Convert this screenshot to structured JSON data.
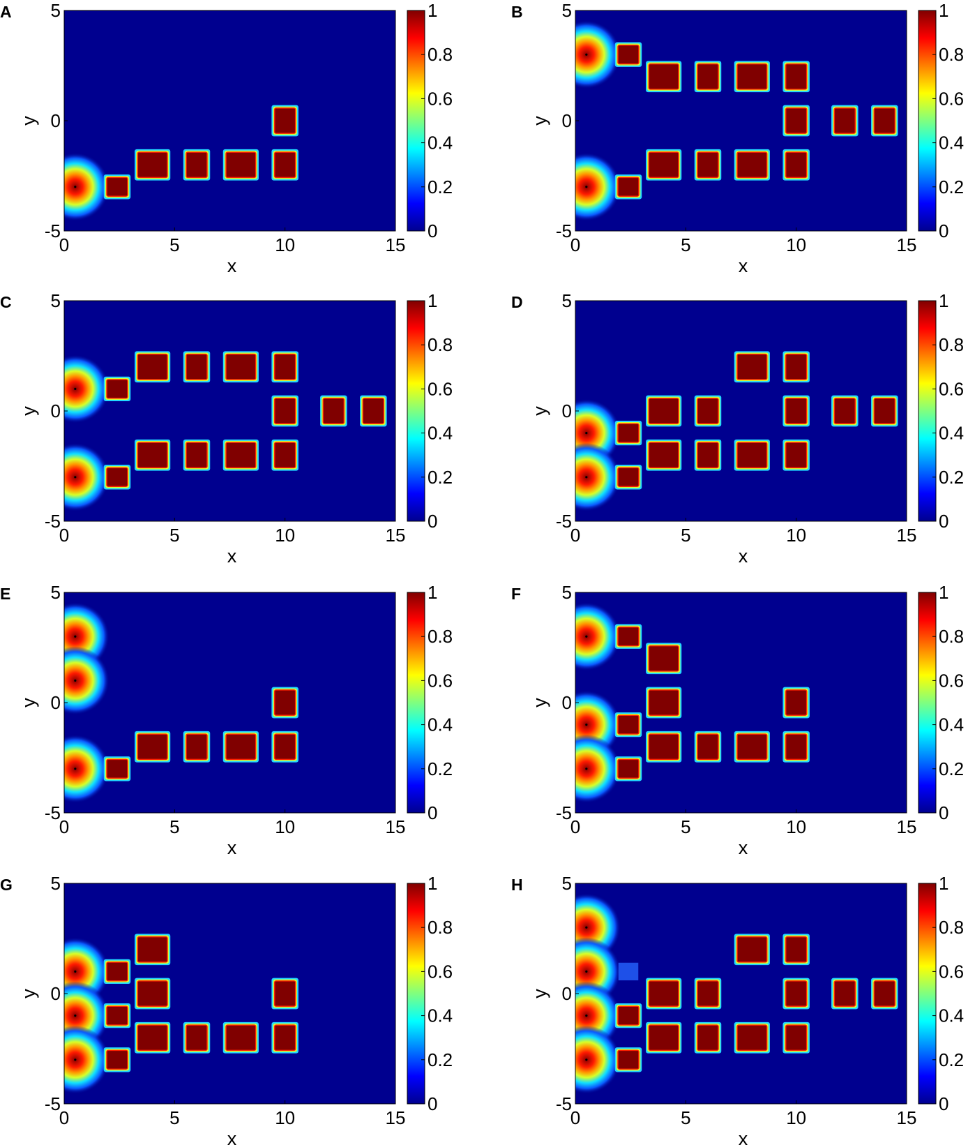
{
  "figure": {
    "colormap": "jet",
    "colors": {
      "background": "#ffffff",
      "field_low": "#00008f",
      "field_high": "#800000"
    },
    "panels": [
      {
        "label": "A"
      },
      {
        "label": "B"
      },
      {
        "label": "C"
      },
      {
        "label": "D"
      },
      {
        "label": "E"
      },
      {
        "label": "F"
      },
      {
        "label": "G"
      },
      {
        "label": "H"
      }
    ]
  },
  "chart_data": [
    {
      "panel": "A",
      "type": "heatmap",
      "colormap": "jet",
      "xlabel": "x",
      "ylabel": "y",
      "xlim": [
        0,
        15
      ],
      "ylim": [
        -5,
        5
      ],
      "xticks": [
        "0",
        "5",
        "10",
        "15"
      ],
      "yticks": [
        "-5",
        "0",
        "5"
      ],
      "clim": [
        0,
        1
      ],
      "colorbar_ticks": [
        "0",
        "0.2",
        "0.4",
        "0.6",
        "0.8",
        "1"
      ],
      "sources": [
        {
          "x": 0.5,
          "y": -3
        }
      ],
      "blocks": [
        {
          "x": 2.4,
          "y": -3,
          "w": 0.9,
          "h": 0.8
        },
        {
          "x": 4,
          "y": -2,
          "w": 1.3,
          "h": 1.1
        },
        {
          "x": 6,
          "y": -2,
          "w": 0.9,
          "h": 1.1
        },
        {
          "x": 8,
          "y": -2,
          "w": 1.3,
          "h": 1.1
        },
        {
          "x": 10,
          "y": -2,
          "w": 0.9,
          "h": 1.1
        },
        {
          "x": 10,
          "y": 0,
          "w": 0.9,
          "h": 1.1
        }
      ]
    },
    {
      "panel": "B",
      "type": "heatmap",
      "colormap": "jet",
      "xlabel": "x",
      "ylabel": "y",
      "xlim": [
        0,
        15
      ],
      "ylim": [
        -5,
        5
      ],
      "xticks": [
        "0",
        "5",
        "10",
        "15"
      ],
      "yticks": [
        "-5",
        "0",
        "5"
      ],
      "clim": [
        0,
        1
      ],
      "colorbar_ticks": [
        "0",
        "0.2",
        "0.4",
        "0.6",
        "0.8",
        "1"
      ],
      "sources": [
        {
          "x": 0.5,
          "y": 3
        },
        {
          "x": 0.5,
          "y": -3
        }
      ],
      "blocks": [
        {
          "x": 2.4,
          "y": 3,
          "w": 0.9,
          "h": 0.8
        },
        {
          "x": 4,
          "y": 2,
          "w": 1.3,
          "h": 1.1
        },
        {
          "x": 6,
          "y": 2,
          "w": 0.9,
          "h": 1.1
        },
        {
          "x": 8,
          "y": 2,
          "w": 1.3,
          "h": 1.1
        },
        {
          "x": 10,
          "y": 2,
          "w": 0.9,
          "h": 1.1
        },
        {
          "x": 10,
          "y": 0,
          "w": 0.9,
          "h": 1.1
        },
        {
          "x": 12.2,
          "y": 0,
          "w": 0.9,
          "h": 1.1
        },
        {
          "x": 14,
          "y": 0,
          "w": 0.9,
          "h": 1.1
        },
        {
          "x": 2.4,
          "y": -3,
          "w": 0.9,
          "h": 0.8
        },
        {
          "x": 4,
          "y": -2,
          "w": 1.3,
          "h": 1.1
        },
        {
          "x": 6,
          "y": -2,
          "w": 0.9,
          "h": 1.1
        },
        {
          "x": 8,
          "y": -2,
          "w": 1.3,
          "h": 1.1
        },
        {
          "x": 10,
          "y": -2,
          "w": 0.9,
          "h": 1.1
        }
      ]
    },
    {
      "panel": "C",
      "type": "heatmap",
      "colormap": "jet",
      "xlabel": "x",
      "ylabel": "y",
      "xlim": [
        0,
        15
      ],
      "ylim": [
        -5,
        5
      ],
      "xticks": [
        "0",
        "5",
        "10",
        "15"
      ],
      "yticks": [
        "-5",
        "0",
        "5"
      ],
      "clim": [
        0,
        1
      ],
      "colorbar_ticks": [
        "0",
        "0.2",
        "0.4",
        "0.6",
        "0.8",
        "1"
      ],
      "sources": [
        {
          "x": 0.5,
          "y": 1
        },
        {
          "x": 0.5,
          "y": -3
        }
      ],
      "blocks": [
        {
          "x": 2.4,
          "y": 1,
          "w": 0.9,
          "h": 0.8
        },
        {
          "x": 4,
          "y": 2,
          "w": 1.3,
          "h": 1.1
        },
        {
          "x": 6,
          "y": 2,
          "w": 0.9,
          "h": 1.1
        },
        {
          "x": 8,
          "y": 2,
          "w": 1.3,
          "h": 1.1
        },
        {
          "x": 10,
          "y": 2,
          "w": 0.9,
          "h": 1.1
        },
        {
          "x": 10,
          "y": 0,
          "w": 0.9,
          "h": 1.1
        },
        {
          "x": 12.2,
          "y": 0,
          "w": 0.9,
          "h": 1.1
        },
        {
          "x": 14,
          "y": 0,
          "w": 0.9,
          "h": 1.1
        },
        {
          "x": 2.4,
          "y": -3,
          "w": 0.9,
          "h": 0.8
        },
        {
          "x": 4,
          "y": -2,
          "w": 1.3,
          "h": 1.1
        },
        {
          "x": 6,
          "y": -2,
          "w": 0.9,
          "h": 1.1
        },
        {
          "x": 8,
          "y": -2,
          "w": 1.3,
          "h": 1.1
        },
        {
          "x": 10,
          "y": -2,
          "w": 0.9,
          "h": 1.1
        }
      ]
    },
    {
      "panel": "D",
      "type": "heatmap",
      "colormap": "jet",
      "xlabel": "x",
      "ylabel": "y",
      "xlim": [
        0,
        15
      ],
      "ylim": [
        -5,
        5
      ],
      "xticks": [
        "0",
        "5",
        "10",
        "15"
      ],
      "yticks": [
        "-5",
        "0",
        "5"
      ],
      "clim": [
        0,
        1
      ],
      "colorbar_ticks": [
        "0",
        "0.2",
        "0.4",
        "0.6",
        "0.8",
        "1"
      ],
      "sources": [
        {
          "x": 0.5,
          "y": -1
        },
        {
          "x": 0.5,
          "y": -3
        }
      ],
      "blocks": [
        {
          "x": 2.4,
          "y": -1,
          "w": 0.9,
          "h": 0.8
        },
        {
          "x": 2.4,
          "y": -3,
          "w": 0.9,
          "h": 0.8
        },
        {
          "x": 8,
          "y": 2,
          "w": 1.3,
          "h": 1.1
        },
        {
          "x": 10,
          "y": 2,
          "w": 0.9,
          "h": 1.1
        },
        {
          "x": 4,
          "y": 0,
          "w": 1.3,
          "h": 1.1
        },
        {
          "x": 6,
          "y": 0,
          "w": 0.9,
          "h": 1.1
        },
        {
          "x": 10,
          "y": 0,
          "w": 0.9,
          "h": 1.1
        },
        {
          "x": 12.2,
          "y": 0,
          "w": 0.9,
          "h": 1.1
        },
        {
          "x": 14,
          "y": 0,
          "w": 0.9,
          "h": 1.1
        },
        {
          "x": 4,
          "y": -2,
          "w": 1.3,
          "h": 1.1
        },
        {
          "x": 6,
          "y": -2,
          "w": 0.9,
          "h": 1.1
        },
        {
          "x": 8,
          "y": -2,
          "w": 1.3,
          "h": 1.1
        },
        {
          "x": 10,
          "y": -2,
          "w": 0.9,
          "h": 1.1
        }
      ]
    },
    {
      "panel": "E",
      "type": "heatmap",
      "colormap": "jet",
      "xlabel": "x",
      "ylabel": "y",
      "xlim": [
        0,
        15
      ],
      "ylim": [
        -5,
        5
      ],
      "xticks": [
        "0",
        "5",
        "10",
        "15"
      ],
      "yticks": [
        "-5",
        "0",
        "5"
      ],
      "clim": [
        0,
        1
      ],
      "colorbar_ticks": [
        "0",
        "0.2",
        "0.4",
        "0.6",
        "0.8",
        "1"
      ],
      "sources": [
        {
          "x": 0.5,
          "y": 3
        },
        {
          "x": 0.5,
          "y": 1
        },
        {
          "x": 0.5,
          "y": -3
        }
      ],
      "blocks": [
        {
          "x": 2.4,
          "y": -3,
          "w": 0.9,
          "h": 0.8
        },
        {
          "x": 4,
          "y": -2,
          "w": 1.3,
          "h": 1.1
        },
        {
          "x": 6,
          "y": -2,
          "w": 0.9,
          "h": 1.1
        },
        {
          "x": 8,
          "y": -2,
          "w": 1.3,
          "h": 1.1
        },
        {
          "x": 10,
          "y": -2,
          "w": 0.9,
          "h": 1.1
        },
        {
          "x": 10,
          "y": 0,
          "w": 0.9,
          "h": 1.1
        }
      ]
    },
    {
      "panel": "F",
      "type": "heatmap",
      "colormap": "jet",
      "xlabel": "x",
      "ylabel": "y",
      "xlim": [
        0,
        15
      ],
      "ylim": [
        -5,
        5
      ],
      "xticks": [
        "0",
        "5",
        "10",
        "15"
      ],
      "yticks": [
        "-5",
        "0",
        "5"
      ],
      "clim": [
        0,
        1
      ],
      "colorbar_ticks": [
        "0",
        "0.2",
        "0.4",
        "0.6",
        "0.8",
        "1"
      ],
      "sources": [
        {
          "x": 0.5,
          "y": 3
        },
        {
          "x": 0.5,
          "y": -1
        },
        {
          "x": 0.5,
          "y": -3
        }
      ],
      "blocks": [
        {
          "x": 2.4,
          "y": 3,
          "w": 0.9,
          "h": 0.8
        },
        {
          "x": 4,
          "y": 2,
          "w": 1.3,
          "h": 1.1
        },
        {
          "x": 4,
          "y": 0,
          "w": 1.3,
          "h": 1.1
        },
        {
          "x": 2.4,
          "y": -1,
          "w": 0.9,
          "h": 0.8
        },
        {
          "x": 2.4,
          "y": -3,
          "w": 0.9,
          "h": 0.8
        },
        {
          "x": 4,
          "y": -2,
          "w": 1.3,
          "h": 1.1
        },
        {
          "x": 6,
          "y": -2,
          "w": 0.9,
          "h": 1.1
        },
        {
          "x": 8,
          "y": -2,
          "w": 1.3,
          "h": 1.1
        },
        {
          "x": 10,
          "y": -2,
          "w": 0.9,
          "h": 1.1
        },
        {
          "x": 10,
          "y": 0,
          "w": 0.9,
          "h": 1.1
        }
      ]
    },
    {
      "panel": "G",
      "type": "heatmap",
      "colormap": "jet",
      "xlabel": "x",
      "ylabel": "y",
      "xlim": [
        0,
        15
      ],
      "ylim": [
        -5,
        5
      ],
      "xticks": [
        "0",
        "5",
        "10",
        "15"
      ],
      "yticks": [
        "-5",
        "0",
        "5"
      ],
      "clim": [
        0,
        1
      ],
      "colorbar_ticks": [
        "0",
        "0.2",
        "0.4",
        "0.6",
        "0.8",
        "1"
      ],
      "sources": [
        {
          "x": 0.5,
          "y": 1
        },
        {
          "x": 0.5,
          "y": -1
        },
        {
          "x": 0.5,
          "y": -3
        }
      ],
      "blocks": [
        {
          "x": 2.4,
          "y": 1,
          "w": 0.9,
          "h": 0.8
        },
        {
          "x": 2.4,
          "y": -1,
          "w": 0.9,
          "h": 0.8
        },
        {
          "x": 2.4,
          "y": -3,
          "w": 0.9,
          "h": 0.8
        },
        {
          "x": 4,
          "y": 2,
          "w": 1.3,
          "h": 1.1
        },
        {
          "x": 4,
          "y": 0,
          "w": 1.3,
          "h": 1.1
        },
        {
          "x": 4,
          "y": -2,
          "w": 1.3,
          "h": 1.1
        },
        {
          "x": 6,
          "y": -2,
          "w": 0.9,
          "h": 1.1
        },
        {
          "x": 8,
          "y": -2,
          "w": 1.3,
          "h": 1.1
        },
        {
          "x": 10,
          "y": -2,
          "w": 0.9,
          "h": 1.1
        },
        {
          "x": 10,
          "y": 0,
          "w": 0.9,
          "h": 1.1
        }
      ]
    },
    {
      "panel": "H",
      "type": "heatmap",
      "colormap": "jet",
      "xlabel": "x",
      "ylabel": "y",
      "xlim": [
        0,
        15
      ],
      "ylim": [
        -5,
        5
      ],
      "xticks": [
        "0",
        "5",
        "10",
        "15"
      ],
      "yticks": [
        "-5",
        "0",
        "5"
      ],
      "clim": [
        0,
        1
      ],
      "colorbar_ticks": [
        "0",
        "0.2",
        "0.4",
        "0.6",
        "0.8",
        "1"
      ],
      "sources": [
        {
          "x": 0.5,
          "y": 3
        },
        {
          "x": 0.5,
          "y": 1
        },
        {
          "x": 0.5,
          "y": -1
        },
        {
          "x": 0.5,
          "y": -3
        }
      ],
      "faint_blocks": [
        {
          "x": 2.4,
          "y": 1,
          "w": 0.9,
          "h": 0.8,
          "value": 0.15
        }
      ],
      "blocks": [
        {
          "x": 2.4,
          "y": -1,
          "w": 0.9,
          "h": 0.8
        },
        {
          "x": 2.4,
          "y": -3,
          "w": 0.9,
          "h": 0.8
        },
        {
          "x": 8,
          "y": 2,
          "w": 1.3,
          "h": 1.1
        },
        {
          "x": 10,
          "y": 2,
          "w": 0.9,
          "h": 1.1
        },
        {
          "x": 4,
          "y": 0,
          "w": 1.3,
          "h": 1.1
        },
        {
          "x": 6,
          "y": 0,
          "w": 0.9,
          "h": 1.1
        },
        {
          "x": 10,
          "y": 0,
          "w": 0.9,
          "h": 1.1
        },
        {
          "x": 12.2,
          "y": 0,
          "w": 0.9,
          "h": 1.1
        },
        {
          "x": 14,
          "y": 0,
          "w": 0.9,
          "h": 1.1
        },
        {
          "x": 4,
          "y": -2,
          "w": 1.3,
          "h": 1.1
        },
        {
          "x": 6,
          "y": -2,
          "w": 0.9,
          "h": 1.1
        },
        {
          "x": 8,
          "y": -2,
          "w": 1.3,
          "h": 1.1
        },
        {
          "x": 10,
          "y": -2,
          "w": 0.9,
          "h": 1.1
        }
      ]
    }
  ]
}
